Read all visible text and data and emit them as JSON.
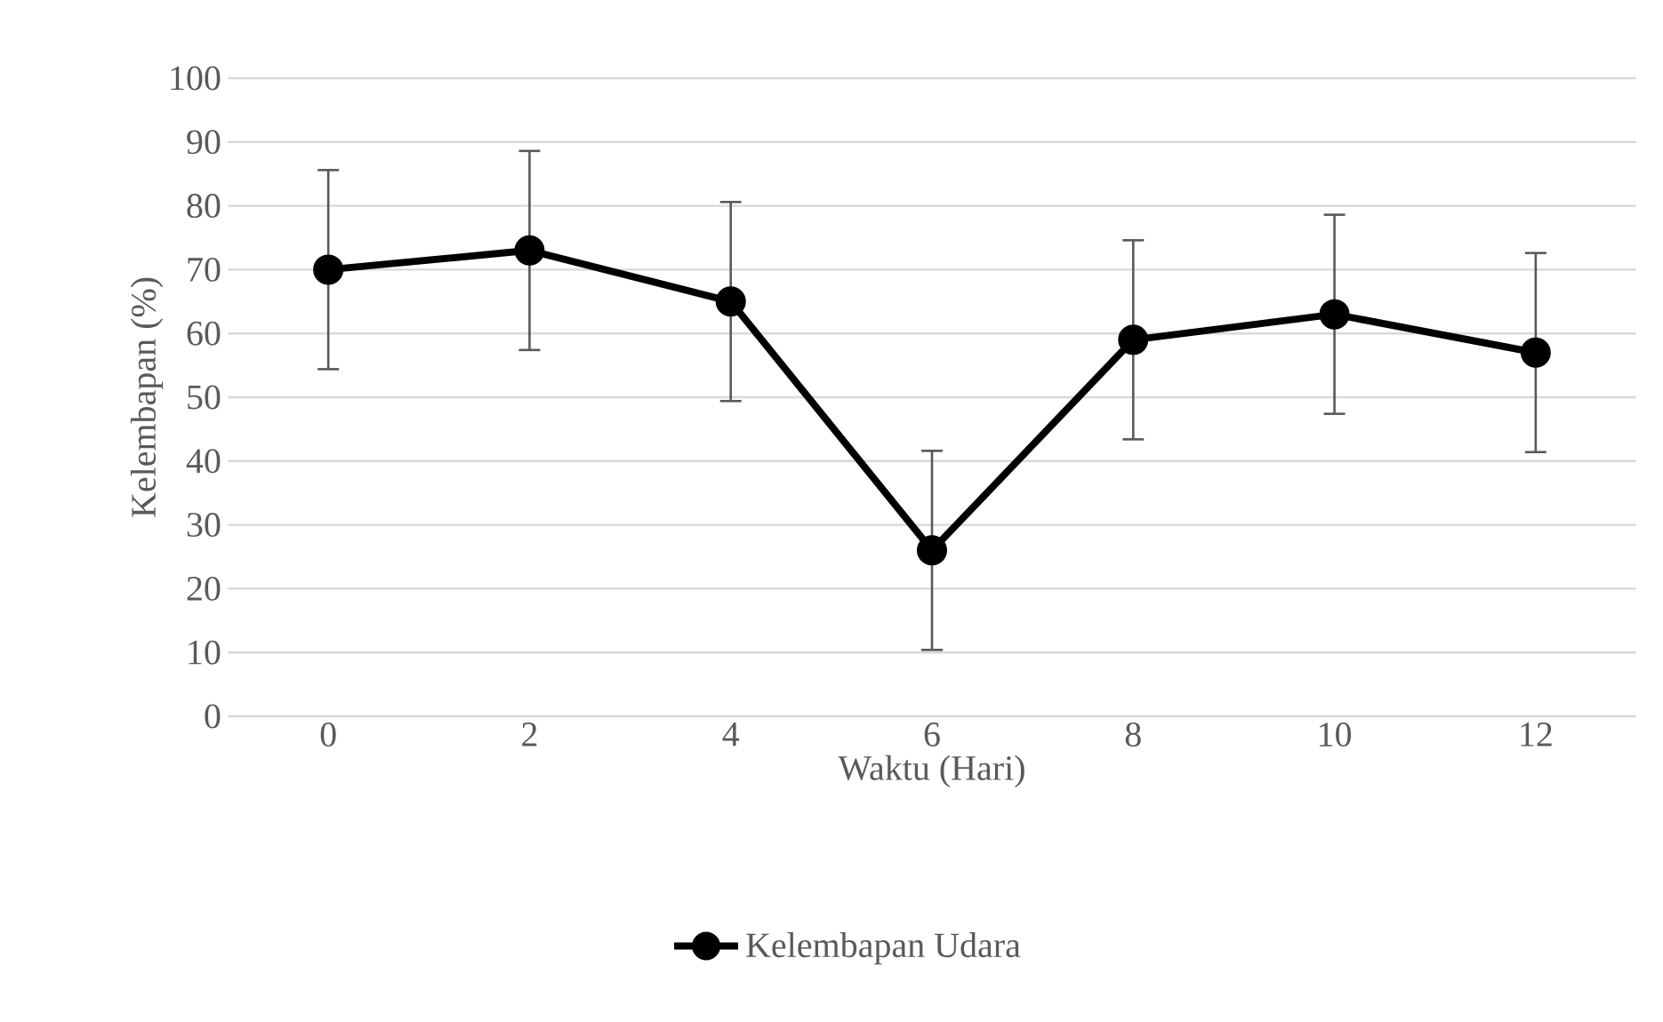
{
  "chart_data": {
    "type": "line",
    "xlabel": "Waktu (Hari)",
    "ylabel": "Kelembapan (%)",
    "categories": [
      "0",
      "2",
      "4",
      "6",
      "8",
      "10",
      "12"
    ],
    "series": [
      {
        "name": "Kelembapan Udara",
        "color": "#000000",
        "values": [
          70,
          73,
          65,
          26,
          59,
          63,
          57
        ],
        "errors": [
          15.6,
          15.6,
          15.6,
          15.6,
          15.6,
          15.6,
          15.6
        ]
      }
    ],
    "ylim": [
      0,
      100
    ],
    "yticks": [
      0,
      10,
      20,
      30,
      40,
      50,
      60,
      70,
      80,
      90,
      100
    ],
    "grid": "y",
    "legend": "bottom",
    "marker": "circle",
    "line_style": "solid"
  }
}
